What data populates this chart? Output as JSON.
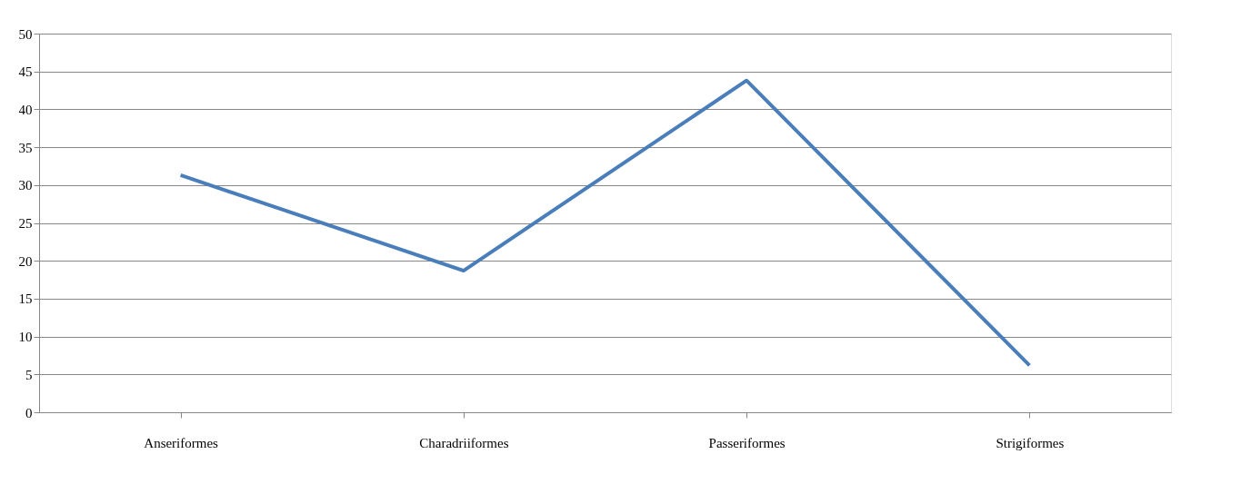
{
  "chart_data": {
    "type": "line",
    "categories": [
      "Anseriformes",
      "Charadriiformes",
      "Passeriformes",
      "Strigiformes"
    ],
    "series": [
      {
        "color": "#4a7ebb",
        "values": [
          31.3,
          18.7,
          43.8,
          6.2
        ]
      }
    ],
    "ylim": [
      0,
      50
    ],
    "yticks": [
      0,
      5,
      10,
      15,
      20,
      25,
      30,
      35,
      40,
      45,
      50
    ],
    "grid": "y",
    "marker": "none",
    "line_style": "solid"
  }
}
